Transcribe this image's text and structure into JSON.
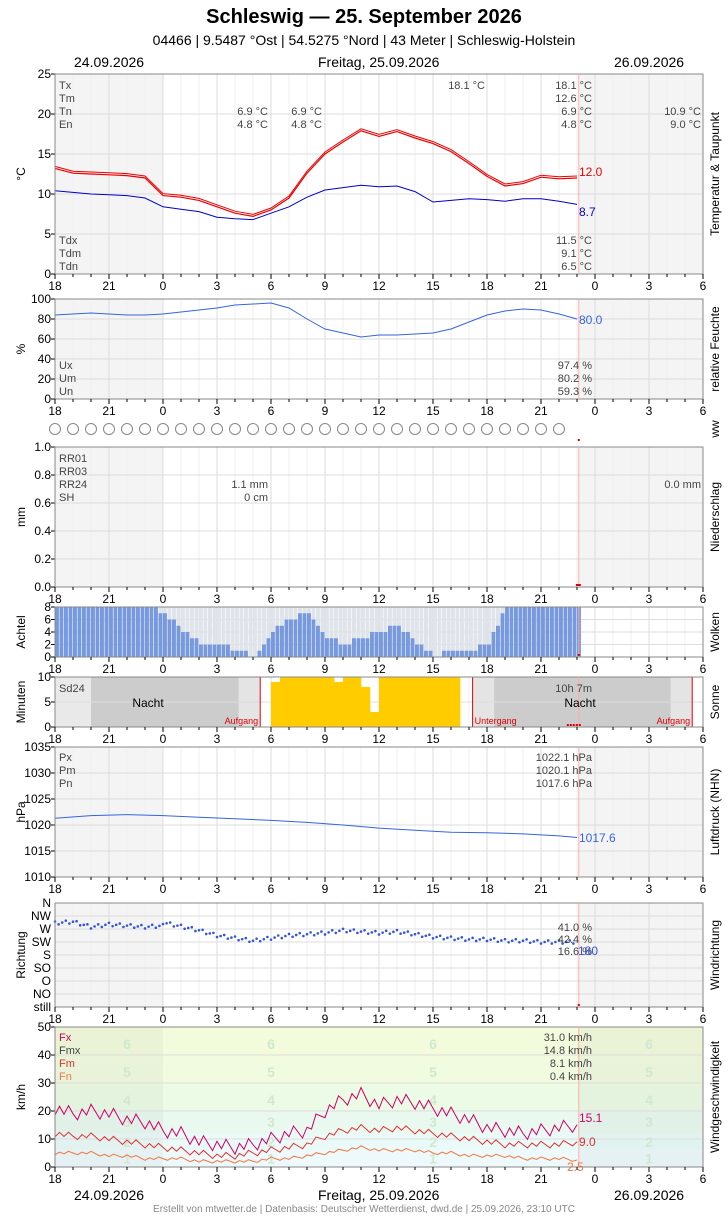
{
  "header": {
    "title": "Schleswig  —  25. September 2026",
    "subtitle": "04466  |  9.5487 °Ost  |  54.5275 °Nord  |  43 Meter  |  Schleswig-Holstein",
    "date_prev": "24.09.2026",
    "date_main": "Freitag, 25.09.2026",
    "date_next": "26.09.2026"
  },
  "footer": "Erstellt von mtwetter.de | Datenbasis: Deutscher Wetterdienst, dwd.de | 25.09.2026, 23:10 UTC",
  "x_axis": {
    "tick_labels": [
      "18",
      "21",
      "0",
      "3",
      "6",
      "9",
      "12",
      "15",
      "18",
      "21",
      "0",
      "3",
      "6"
    ],
    "current_hour_marker": 23.1
  },
  "colors": {
    "temperature": "#ee0000",
    "dewpoint": "#0000cc",
    "humidity": "#3366dd",
    "pressure": "#3366dd",
    "clouds": "#7799dd",
    "sun": "#ffcc00",
    "wind_fx": "#cc0066",
    "wind_fm": "#dd3333",
    "wind_fn": "#ee7744",
    "night": "#cccccc"
  },
  "chart_data": [
    {
      "type": "line",
      "title": "Temperatur & Taupunkt",
      "ylabel": "°C",
      "ylim": [
        0,
        25
      ],
      "y_ticks": [
        "0",
        "5",
        "10",
        "15",
        "20",
        "25"
      ],
      "x_unit": "hours relative to 00:00 on 25.09.2026",
      "series": [
        {
          "name": "Temperatur",
          "x": [
            -6,
            -5,
            -4,
            -3,
            -2,
            -1,
            0,
            1,
            2,
            3,
            4,
            5,
            6,
            7,
            8,
            9,
            10,
            11,
            12,
            13,
            14,
            15,
            16,
            17,
            18,
            19,
            20,
            21,
            22,
            23
          ],
          "values": [
            13.2,
            12.6,
            12.5,
            12.4,
            12.3,
            12.0,
            9.8,
            9.6,
            9.2,
            8.4,
            7.6,
            7.2,
            8.0,
            9.5,
            12.6,
            15.0,
            16.5,
            17.9,
            17.2,
            17.8,
            17.0,
            16.3,
            15.3,
            13.8,
            12.2,
            11.0,
            11.3,
            12.1,
            11.9,
            12.0
          ]
        },
        {
          "name": "Taupunkt",
          "x": [
            -6,
            -5,
            -4,
            -3,
            -2,
            -1,
            0,
            1,
            2,
            3,
            4,
            5,
            6,
            7,
            8,
            9,
            10,
            11,
            12,
            13,
            14,
            15,
            16,
            17,
            18,
            19,
            20,
            21,
            22,
            23
          ],
          "values": [
            10.4,
            10.2,
            10.0,
            9.9,
            9.8,
            9.5,
            8.4,
            8.1,
            7.8,
            7.1,
            6.9,
            6.8,
            7.6,
            8.4,
            9.6,
            10.5,
            10.8,
            11.1,
            10.9,
            11.0,
            10.3,
            9.0,
            9.2,
            9.4,
            9.3,
            9.1,
            9.4,
            9.4,
            9.1,
            8.7
          ]
        }
      ],
      "stats": {
        "Tx": "18.1 °C",
        "Tm": "12.6 °C",
        "Tn": "6.9 °C",
        "En": "4.8 °C",
        "Tdx": "11.5 °C",
        "Tdm": "9.1 °C",
        "Tdn": "6.5 °C"
      },
      "annotations": {
        "tn_prev": "6.9 °C",
        "en_prev": "4.8 °C",
        "tn_night": "6.9 °C",
        "en_night": "4.8 °C",
        "tx_peak": "18.1 °C",
        "tn_next": "10.9 °C",
        "en_next": "9.0 °C",
        "last_t": "12.0",
        "last_td": "8.7"
      }
    },
    {
      "type": "line",
      "title": "relative Feuchte",
      "ylabel": "%",
      "ylim": [
        0,
        100
      ],
      "y_ticks": [
        "0",
        "20",
        "40",
        "60",
        "80",
        "100"
      ],
      "series": [
        {
          "name": "relative Feuchte",
          "x": [
            -6,
            -5,
            -4,
            -3,
            -2,
            -1,
            0,
            1,
            2,
            3,
            4,
            5,
            6,
            7,
            8,
            9,
            10,
            11,
            12,
            13,
            14,
            15,
            16,
            17,
            18,
            19,
            20,
            21,
            22,
            23
          ],
          "values": [
            84,
            85,
            86,
            85,
            84,
            84,
            85,
            87,
            89,
            91,
            94,
            95,
            96,
            91,
            80,
            70,
            66,
            62,
            64,
            64,
            65,
            66,
            70,
            77,
            84,
            88,
            90,
            89,
            85,
            80
          ]
        }
      ],
      "stats": {
        "Ux": "97.4 %",
        "Um": "80.2 %",
        "Un": "59.3 %"
      },
      "last": "80.0"
    },
    {
      "type": "table",
      "title": "ww",
      "circle_count": 29
    },
    {
      "type": "bar",
      "title": "Niederschlag",
      "ylabel": "mm",
      "ylim": [
        0,
        1.0
      ],
      "y_ticks": [
        "0.0",
        "0.2",
        "0.4",
        "0.6",
        "0.8",
        "1.0"
      ],
      "values_total": {
        "RR24_prev": "1.1 mm",
        "SH_prev": "0 cm",
        "RR24_next": "0.0 mm"
      },
      "stat_labels": [
        "RR01",
        "RR03",
        "RR24",
        "SH"
      ]
    },
    {
      "type": "bar",
      "title": "Wolken",
      "ylabel": "Achtel",
      "ylim": [
        0,
        8
      ],
      "y_ticks": [
        "0",
        "2",
        "4",
        "6",
        "8"
      ],
      "x": [
        -6,
        -5,
        -4,
        -3,
        -2,
        -1,
        0,
        1,
        2,
        3,
        4,
        5,
        6,
        7,
        8,
        9,
        10,
        11,
        12,
        13,
        14,
        15,
        16,
        17,
        18,
        19,
        20,
        21,
        22,
        23
      ],
      "values": [
        8,
        8,
        8,
        8,
        8,
        8,
        7,
        4,
        2,
        2,
        1,
        0,
        4,
        6,
        7,
        3,
        2,
        3,
        4,
        5,
        2,
        0,
        1,
        1,
        2,
        8,
        8,
        8,
        8,
        8
      ],
      "covered_total": [
        8,
        8,
        8,
        8,
        8,
        8,
        8,
        8,
        8,
        8,
        8,
        8,
        8,
        8,
        8,
        8,
        8,
        8,
        8,
        8,
        8,
        8,
        8,
        8,
        8,
        8,
        8,
        8,
        8,
        8
      ]
    },
    {
      "type": "bar",
      "title": "Sonne",
      "ylabel": "Minuten",
      "ylim": [
        0,
        10
      ],
      "y_ticks": [
        "0",
        "5",
        "10"
      ],
      "sd24_label": "Sd24",
      "night_label": "Nacht",
      "sunrise_label": "Aufgang",
      "sunset_label": "Untergang",
      "daylength": "10h 7m",
      "sunrise_hour": 5.4,
      "sunset_hour": 17.2,
      "sunrise_next": 29.4,
      "sun_x": [
        6.5,
        7,
        7.5,
        8,
        8.5,
        9,
        9.5,
        10,
        10.5,
        11,
        11.5,
        12,
        12.5,
        13,
        13.5,
        14,
        14.5,
        15,
        15.5,
        16,
        16.5
      ],
      "sun_values": [
        9,
        10,
        10,
        10,
        10,
        10,
        10,
        9,
        10,
        10,
        8,
        3,
        10,
        10,
        10,
        10,
        10,
        10,
        10,
        10,
        10
      ]
    },
    {
      "type": "line",
      "title": "Luftdruck (NHN)",
      "ylabel": "hPa",
      "ylim": [
        1010,
        1035
      ],
      "y_ticks": [
        "1010",
        "1015",
        "1020",
        "1025",
        "1030",
        "1035"
      ],
      "series": [
        {
          "name": "Luftdruck",
          "x": [
            -6,
            -4,
            -2,
            0,
            2,
            4,
            6,
            8,
            10,
            12,
            14,
            16,
            18,
            20,
            22,
            23
          ],
          "values": [
            1021.3,
            1021.8,
            1022.0,
            1021.8,
            1021.5,
            1021.2,
            1020.9,
            1020.5,
            1020.0,
            1019.4,
            1019.0,
            1018.6,
            1018.5,
            1018.3,
            1017.9,
            1017.6
          ]
        }
      ],
      "stats": {
        "Px": "1022.1 hPa",
        "Pm": "1020.1 hPa",
        "Pn": "1017.6 hPa"
      },
      "last": "1017.6"
    },
    {
      "type": "scatter",
      "title": "Windrichtung",
      "ylabel": "Richtung",
      "y_ticks": [
        "still",
        "NO",
        "O",
        "SO",
        "S",
        "SW",
        "W",
        "NW",
        "N"
      ],
      "x": [
        -6,
        -5,
        -4,
        -3,
        -2,
        -1,
        0,
        1,
        2,
        3,
        4,
        5,
        6,
        7,
        8,
        9,
        10,
        11,
        12,
        13,
        14,
        15,
        16,
        17,
        18,
        19,
        20,
        21,
        22,
        23
      ],
      "values_index": [
        6.7,
        6.8,
        6.4,
        6.6,
        6.5,
        6.4,
        6.5,
        6.2,
        5.9,
        5.5,
        5.3,
        5.1,
        5.3,
        5.5,
        5.6,
        5.7,
        5.9,
        5.8,
        5.7,
        5.8,
        5.6,
        5.4,
        5.3,
        5.2,
        5.2,
        5.1,
        5.1,
        5.0,
        5.0,
        5.0
      ],
      "stats": {
        "d1": "41.0 %",
        "d2": "42.4 %",
        "d3": "16.6 %"
      },
      "last": "180"
    },
    {
      "type": "line",
      "title": "Windgeschwindigkeit",
      "ylabel": "km/h",
      "ylim": [
        0,
        50
      ],
      "y_ticks": [
        "0",
        "10",
        "20",
        "30",
        "40",
        "50"
      ],
      "beaufort_labels": [
        "1",
        "2",
        "3",
        "4",
        "5",
        "6"
      ],
      "series": [
        {
          "name": "Fx",
          "x": [
            -6,
            -5,
            -4,
            -3,
            -2,
            -1,
            0,
            1,
            2,
            3,
            4,
            5,
            6,
            7,
            8,
            9,
            10,
            11,
            12,
            13,
            14,
            15,
            16,
            17,
            18,
            19,
            20,
            21,
            22,
            23
          ],
          "values": [
            21,
            19,
            20,
            19,
            17,
            16,
            13,
            12,
            9,
            8,
            7,
            8,
            10,
            12,
            13,
            20,
            24,
            26,
            22,
            24,
            23,
            21,
            19,
            17,
            14,
            13,
            12,
            13,
            14,
            15.1
          ]
        },
        {
          "name": "Fm",
          "x": [
            -6,
            -5,
            -4,
            -3,
            -2,
            -1,
            0,
            1,
            2,
            3,
            4,
            5,
            6,
            7,
            8,
            9,
            10,
            11,
            12,
            13,
            14,
            15,
            16,
            17,
            18,
            19,
            20,
            21,
            22,
            23
          ],
          "values": [
            12,
            11,
            11,
            10,
            9,
            8,
            7,
            6,
            5,
            4,
            4,
            5,
            6,
            7,
            8,
            11,
            13,
            14,
            13,
            14,
            13,
            12,
            11,
            10,
            9,
            8,
            8,
            8,
            8,
            9.0
          ]
        },
        {
          "name": "Fn",
          "x": [
            -6,
            -5,
            -4,
            -3,
            -2,
            -1,
            0,
            1,
            2,
            3,
            4,
            5,
            6,
            7,
            8,
            9,
            10,
            11,
            12,
            13,
            14,
            15,
            16,
            17,
            18,
            19,
            20,
            21,
            22,
            23
          ],
          "values": [
            5,
            5,
            5,
            4,
            4,
            3,
            3,
            3,
            2,
            2,
            2,
            2,
            3,
            3,
            4,
            5,
            6,
            7,
            6,
            6,
            6,
            5,
            5,
            4,
            4,
            4,
            3,
            3,
            3,
            2.5
          ]
        }
      ],
      "stats": {
        "Fx": "31.0 km/h",
        "Fmx": "14.8 km/h",
        "Fm": "8.1 km/h",
        "Fn": "0.4 km/h"
      },
      "last": {
        "fx": "15.1",
        "fm": "9.0",
        "fn": "2.5"
      }
    }
  ]
}
